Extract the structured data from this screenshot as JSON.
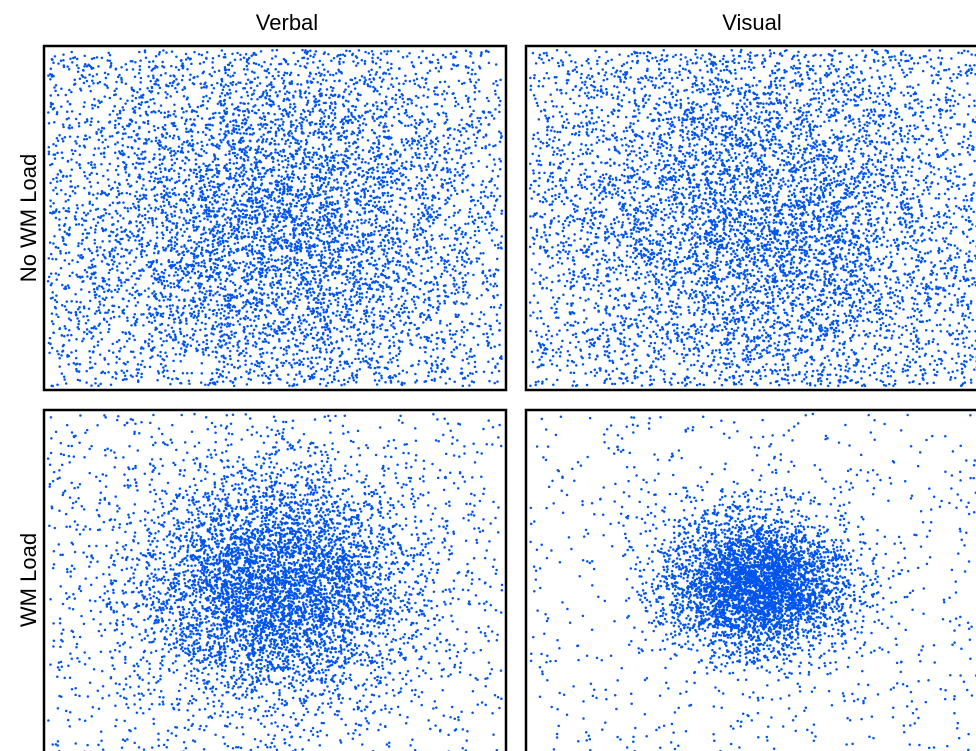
{
  "columns": [
    "Verbal",
    "Visual"
  ],
  "rows": [
    "No WM Load",
    "WM Load"
  ],
  "point_color": "#0055ee",
  "chart_data": [
    {
      "type": "scatter",
      "row": "No WM Load",
      "column": "Verbal",
      "xlim": [
        0,
        1
      ],
      "ylim": [
        0,
        1
      ],
      "distribution": {
        "center": [
          0.5,
          0.5
        ],
        "spread": [
          0.22,
          0.28
        ],
        "uniform_fraction": 0.45,
        "approx_points": 7500
      },
      "xlabel": "",
      "ylabel": "",
      "grid": false
    },
    {
      "type": "scatter",
      "row": "No WM Load",
      "column": "Visual",
      "xlim": [
        0,
        1
      ],
      "ylim": [
        0,
        1
      ],
      "distribution": {
        "center": [
          0.5,
          0.5
        ],
        "spread": [
          0.22,
          0.28
        ],
        "uniform_fraction": 0.45,
        "approx_points": 7500
      },
      "xlabel": "",
      "ylabel": "",
      "grid": false
    },
    {
      "type": "scatter",
      "row": "WM Load",
      "column": "Verbal",
      "xlim": [
        0,
        1
      ],
      "ylim": [
        0,
        1
      ],
      "distribution": {
        "center": [
          0.5,
          0.5
        ],
        "spread": [
          0.15,
          0.17
        ],
        "uniform_fraction": 0.2,
        "approx_points": 6500
      },
      "xlabel": "",
      "ylabel": "",
      "grid": false
    },
    {
      "type": "scatter",
      "row": "WM Load",
      "column": "Visual",
      "xlim": [
        0,
        1
      ],
      "ylim": [
        0,
        1
      ],
      "distribution": {
        "center": [
          0.5,
          0.5
        ],
        "spread": [
          0.1,
          0.1
        ],
        "uniform_fraction": 0.15,
        "approx_points": 5000
      },
      "xlabel": "",
      "ylabel": "",
      "grid": false
    }
  ]
}
